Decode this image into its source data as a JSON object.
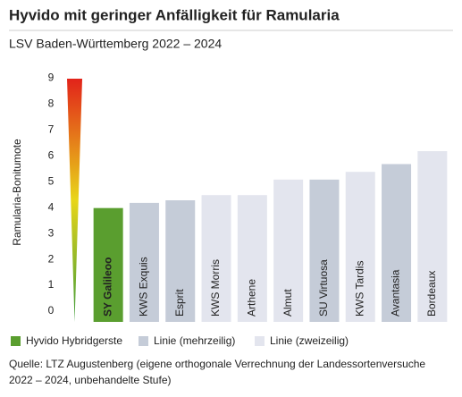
{
  "chart_data": {
    "type": "bar",
    "title": "Hyvido mit geringer Anfälligkeit für Ramularia",
    "subtitle": "LSV Baden-Württemberg 2022 – 2024",
    "y_label": "Ramularia-Bonitumote",
    "categories": [
      "SY Galileoo",
      "KWS Exquis",
      "Esprit",
      "KWS Morris",
      "Arthene",
      "Almut",
      "SU Virtuosa",
      "KWS Tardis",
      "Avantasia",
      "Bordeaux"
    ],
    "series": [
      {
        "name": "Hyvido Hybridgerste",
        "color": "#5a9e2f",
        "values": [
          4.4,
          null,
          null,
          null,
          null,
          null,
          null,
          null,
          null,
          null
        ]
      },
      {
        "name": "Linie (mehrzeilig)",
        "color": "#c5ccd8",
        "values": [
          null,
          4.6,
          4.7,
          null,
          null,
          null,
          5.5,
          null,
          6.1,
          null
        ]
      },
      {
        "name": "Linie (zweizeilig)",
        "color": "#e3e5ee",
        "values": [
          null,
          null,
          null,
          4.9,
          4.9,
          5.5,
          null,
          5.8,
          null,
          6.6
        ]
      }
    ],
    "ylim": [
      0,
      9.4
    ],
    "yticks": [
      0,
      1,
      2,
      3,
      4,
      5,
      6,
      7,
      8,
      9
    ],
    "notes": [
      "Quelle: LTZ Augustenberg (eigene orthogonale Verrechnung der Landessortenversuche",
      "2022 – 2024, unbehandelte Stufe)"
    ]
  }
}
